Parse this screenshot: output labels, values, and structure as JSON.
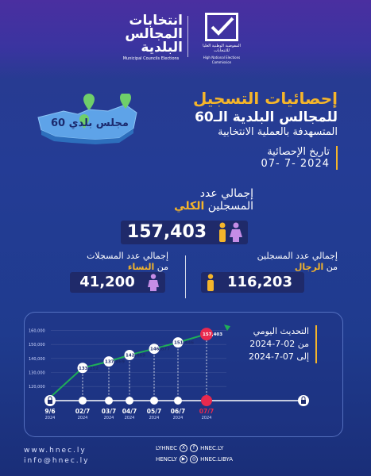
{
  "logos": {
    "left_title": "انتخابات المجالس البلدية",
    "left_subtitle": "Municipal Councils Elections",
    "right_title": "المفوضية الوطنية العليا للانتخابات",
    "right_subtitle": "High National Elections Commission"
  },
  "map": {
    "label": "60 مجلس بلدي"
  },
  "header": {
    "title": "إحصائيات التسجيل",
    "subtitle": "للمجالس البلدية الـ60",
    "subtitle2": "المتسهدفة بالعملية الانتخابية",
    "date_label": "تاريخ الإحصائية",
    "date_value": "07- 7- 2024"
  },
  "total": {
    "label_line1": "إجمالي عدد",
    "label_line2_pre": "المسجلين ",
    "label_line2_bold": "الكلي",
    "value": "157,403"
  },
  "men": {
    "label_line1": "إجمالي عدد المسجلين",
    "label_line2_pre": "من ",
    "label_line2_bold": "الرجال",
    "value": "116,203"
  },
  "women": {
    "label_line1": "إجمالي عدد المسجلات",
    "label_line2_pre": "من ",
    "label_line2_bold": "النساء",
    "value": "41,200"
  },
  "update": {
    "line1": "التحديث اليومي",
    "line2": "من 02-7-2024",
    "line3": "إلى 07-7-2024"
  },
  "chart_data": {
    "type": "line",
    "categories": [
      "9/6\n2024",
      "02/7\n2024",
      "03/7\n2024",
      "04/7\n2024",
      "05/7\n2024",
      "06/7\n2024",
      "07/7\n2024"
    ],
    "x_labels_top": [
      "9/6",
      "02/7",
      "03/7",
      "04/7",
      "05/7",
      "06/7",
      "07/7"
    ],
    "x_labels_bottom": [
      "2024",
      "2024",
      "2024",
      "2024",
      "2024",
      "2024",
      "2024"
    ],
    "values": [
      null,
      133252,
      137869,
      142469,
      146877,
      151446,
      157403
    ],
    "value_labels": [
      "",
      "133,252",
      "137,869",
      "142,469",
      "146,877",
      "151,446",
      "157,403"
    ],
    "y_ticks": [
      "160,000",
      "150,000",
      "140,000",
      "130,000",
      "120,000"
    ],
    "ylim": [
      115000,
      162000
    ],
    "highlight_color": "#e8294e",
    "line_color": "#1fae57"
  },
  "footer": {
    "website": "www.hnec.ly",
    "email": "info@hnec.ly",
    "social1": "LYHNEC",
    "social2": "HNEC.LY",
    "social3": "HENCLY",
    "social4": "HNEC.LIBYA"
  },
  "colors": {
    "accent": "#f5b52a",
    "bg": "#243c95",
    "box": "#1f2a6a"
  }
}
